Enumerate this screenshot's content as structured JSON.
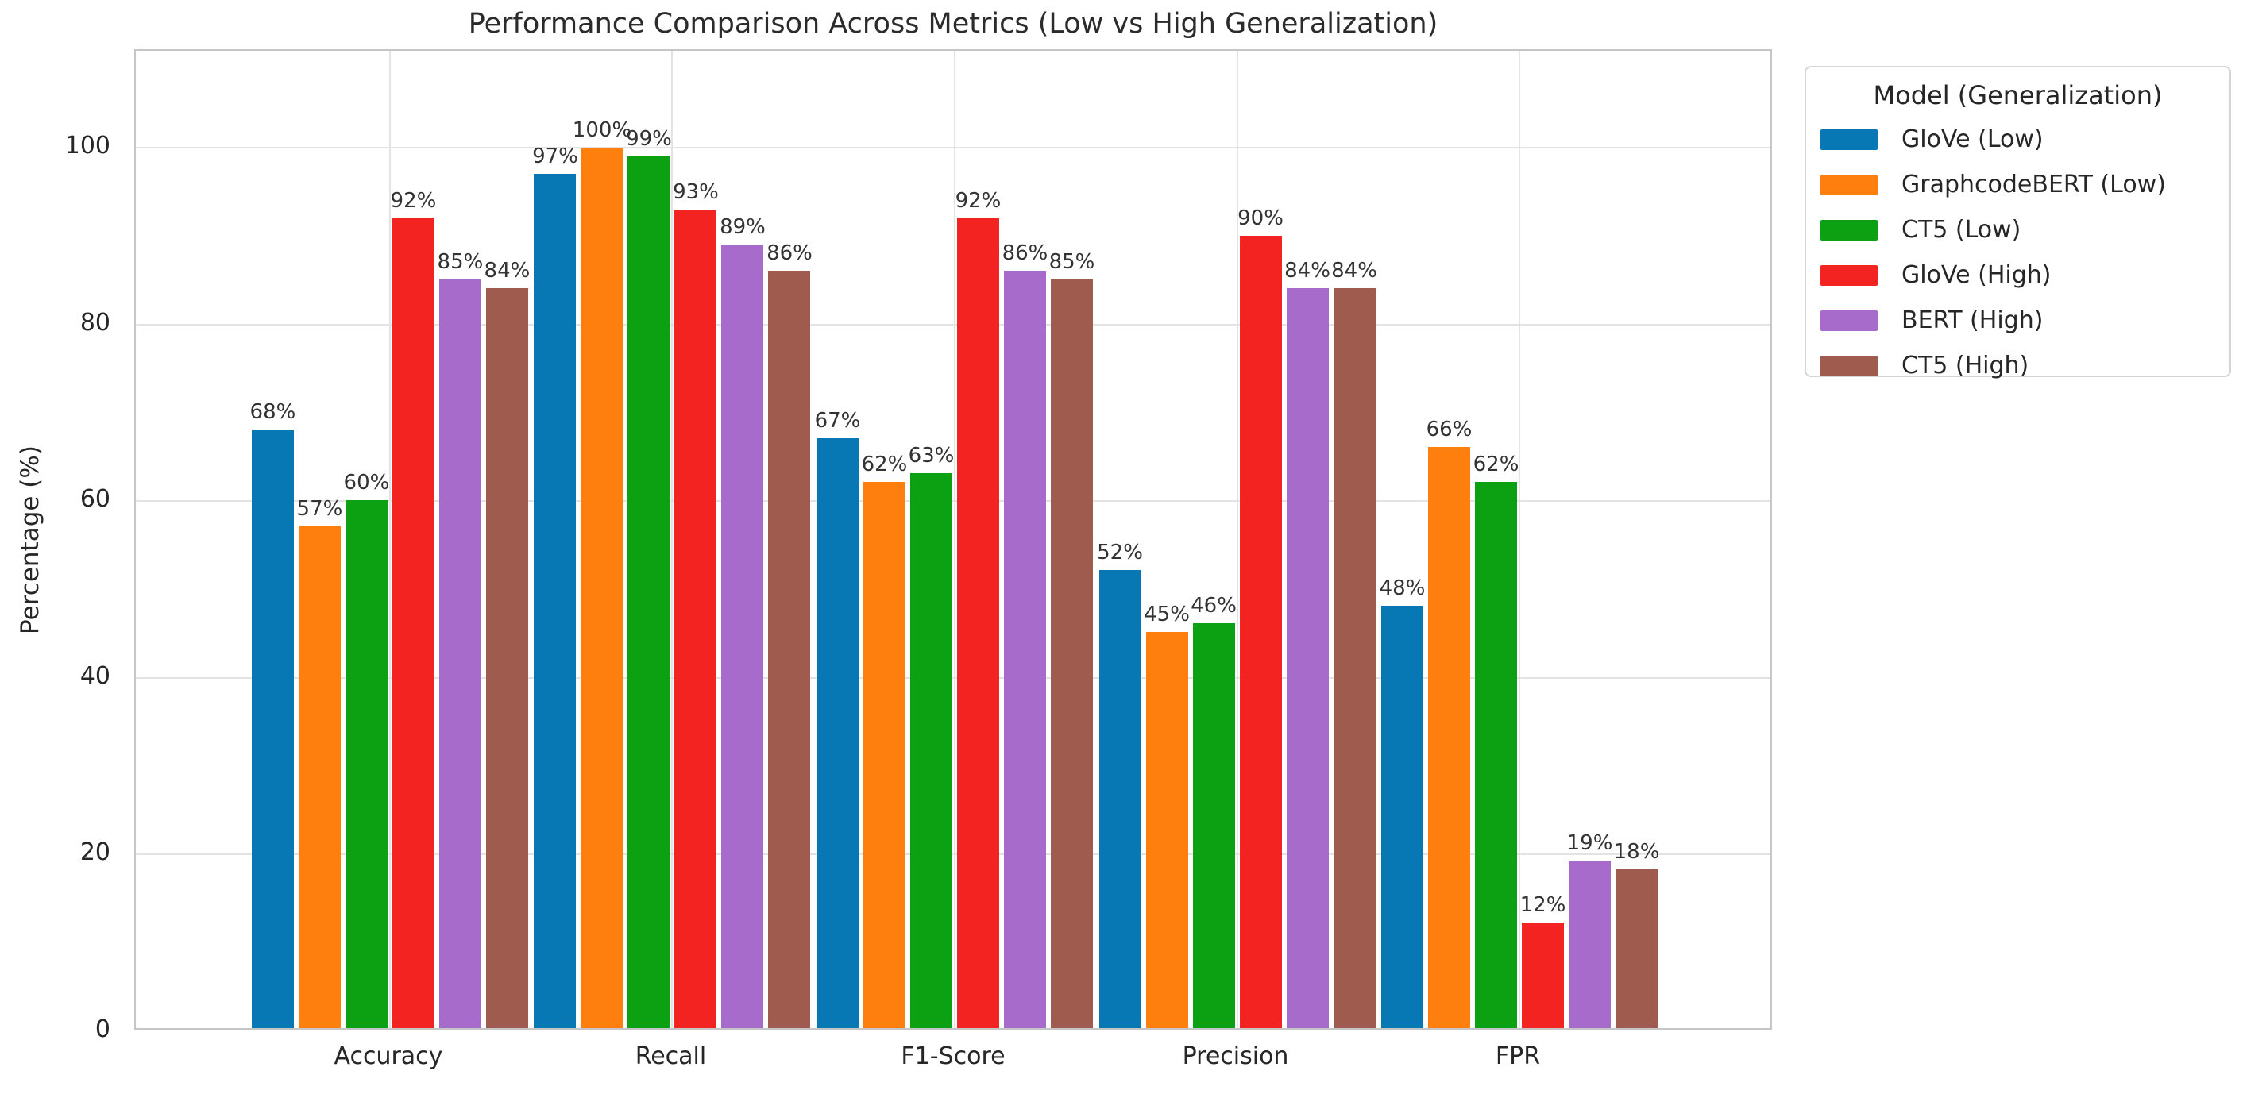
{
  "figure": {
    "background": "#ffffff",
    "grid_color": "#e3e3e3",
    "spine_color": "#c6c6c6",
    "text_color": "#262626"
  },
  "chart_data": {
    "type": "bar",
    "title": "Performance Comparison Across Metrics (Low vs High Generalization)",
    "xlabel": "",
    "ylabel": "Percentage (%)",
    "ylim": [
      0,
      111
    ],
    "yticks": [
      0,
      20,
      40,
      60,
      80,
      100
    ],
    "grid": true,
    "bar_label_suffix": "%",
    "categories": [
      "Accuracy",
      "Recall",
      "F1-Score",
      "Precision",
      "FPR"
    ],
    "legend": {
      "title": "Model (Generalization)",
      "position": "outside-upper-right"
    },
    "series": [
      {
        "name": "GloVe (Low)",
        "color": "#0878b5",
        "values": [
          68,
          97,
          67,
          52,
          48
        ]
      },
      {
        "name": "GraphcodeBERT (Low)",
        "color": "#ff7f0e",
        "values": [
          57,
          100,
          62,
          45,
          66
        ]
      },
      {
        "name": "CT5 (Low)",
        "color": "#0ba112",
        "values": [
          60,
          99,
          63,
          46,
          62
        ]
      },
      {
        "name": "GloVe (High)",
        "color": "#f32322",
        "values": [
          92,
          93,
          92,
          90,
          12
        ]
      },
      {
        "name": "BERT (High)",
        "color": "#a66bcb",
        "values": [
          85,
          89,
          86,
          84,
          19
        ]
      },
      {
        "name": "CT5 (High)",
        "color": "#9e5b4e",
        "values": [
          84,
          86,
          85,
          84,
          18
        ]
      }
    ]
  }
}
